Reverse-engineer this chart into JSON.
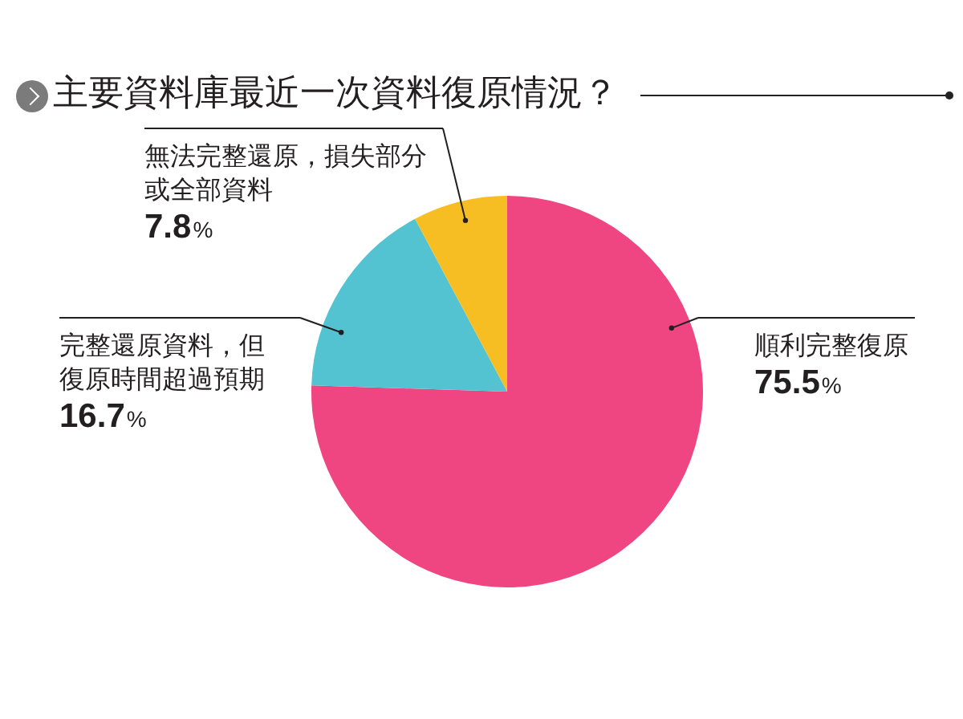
{
  "chart_data": {
    "type": "pie",
    "title": "主要資料庫最近一次資料復原情況？",
    "categories": [
      "順利完整復原",
      "完整還原資料，但復原時間超過預期",
      "無法完整還原，損失部分或全部資料"
    ],
    "values": [
      75.5,
      16.7,
      7.8
    ],
    "colors": [
      "#ef4580",
      "#54c3d1",
      "#f6be22"
    ],
    "value_labels": [
      "75.5%",
      "16.7%",
      "7.8%"
    ]
  }
}
